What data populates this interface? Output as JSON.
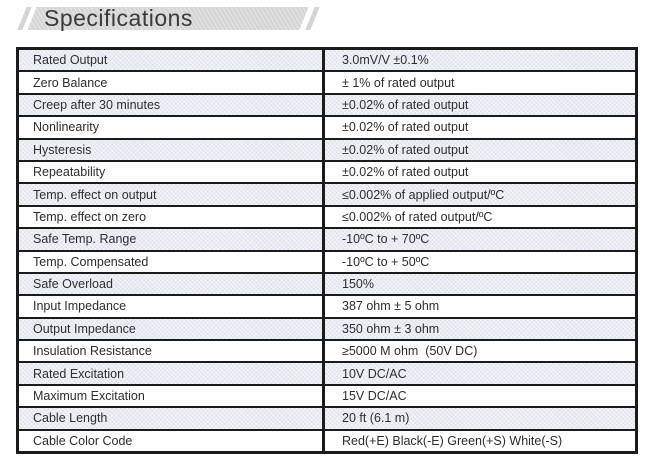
{
  "header": {
    "title": "Specifications",
    "banner_color": "#d5d5d5",
    "title_color": "#3a3a3a"
  },
  "table": {
    "border_color": "#1b1b1b",
    "shaded_row_color": "#e9edf3",
    "text_color": "#2e2e2e",
    "columns": [
      "parameter",
      "value"
    ],
    "rows": [
      {
        "label": "Rated Output",
        "value": "3.0mV/V ±0.1%"
      },
      {
        "label": "Zero Balance",
        "value": "± 1% of rated output"
      },
      {
        "label": "Creep after 30 minutes",
        "value": "±0.02% of rated output"
      },
      {
        "label": "Nonlinearity",
        "value": "±0.02% of rated output"
      },
      {
        "label": "Hysteresis",
        "value": "±0.02% of rated output"
      },
      {
        "label": "Repeatability",
        "value": "±0.02% of rated output"
      },
      {
        "label": "Temp. effect on output",
        "value": "≤0.002% of applied output/ºC"
      },
      {
        "label": "Temp. effect on zero",
        "value": "≤0.002% of rated output/ºC"
      },
      {
        "label": "Safe Temp. Range",
        "value": "-10ºC to + 70ºC"
      },
      {
        "label": "Temp. Compensated",
        "value": "-10ºC to + 50ºC"
      },
      {
        "label": "Safe Overload",
        "value": "150%"
      },
      {
        "label": "Input Impedance",
        "value": "387 ohm ± 5 ohm"
      },
      {
        "label": "Output Impedance",
        "value": "350 ohm ± 3 ohm"
      },
      {
        "label": "Insulation Resistance",
        "value": "≥5000 M ohm  (50V DC)"
      },
      {
        "label": "Rated Excitation",
        "value": "10V DC/AC"
      },
      {
        "label": "Maximum Excitation",
        "value": "15V DC/AC"
      },
      {
        "label": "Cable Length",
        "value": "20 ft (6.1 m)"
      },
      {
        "label": "Cable Color Code",
        "value": "Red(+E) Black(-E) Green(+S) White(-S)"
      }
    ]
  }
}
